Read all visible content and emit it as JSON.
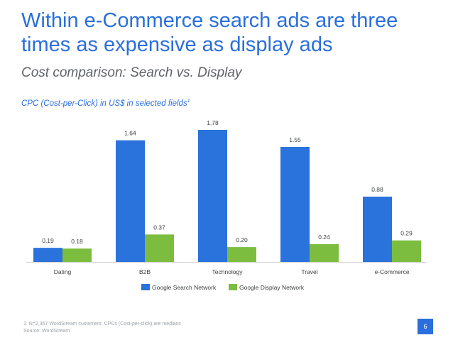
{
  "slide": {
    "title_line1": "Within e-Commerce search ads are three",
    "title_line2": "times as expensive as display ads",
    "subtitle": "Cost comparison: Search vs. Display",
    "caption": "CPC (Cost-per-Click) in US$ in selected fields",
    "caption_sup": "1",
    "footnote_line1": "1: N=2,367 WordStream customers; CPCs (Cost-per-click) are medians",
    "footnote_line2": "Source: WordStream",
    "page_number": "6"
  },
  "chart_data": {
    "type": "bar",
    "categories": [
      "Dating",
      "B2B",
      "Technology",
      "Travel",
      "e-Commerce"
    ],
    "series": [
      {
        "name": "Google Search Network",
        "color": "#2a72dc",
        "values": [
          0.19,
          1.64,
          1.78,
          1.55,
          0.88
        ],
        "labels": [
          "0.19",
          "1.64",
          "1.78",
          "1.55",
          "0.88"
        ]
      },
      {
        "name": "Google Display Network",
        "color": "#7cbd3f",
        "values": [
          0.18,
          0.37,
          0.2,
          0.24,
          0.29
        ],
        "labels": [
          "0.18",
          "0.37",
          "0.20",
          "0.24",
          "0.29"
        ]
      }
    ],
    "ylim": [
      0,
      1.78
    ],
    "grid": false,
    "legend_position": "bottom"
  }
}
